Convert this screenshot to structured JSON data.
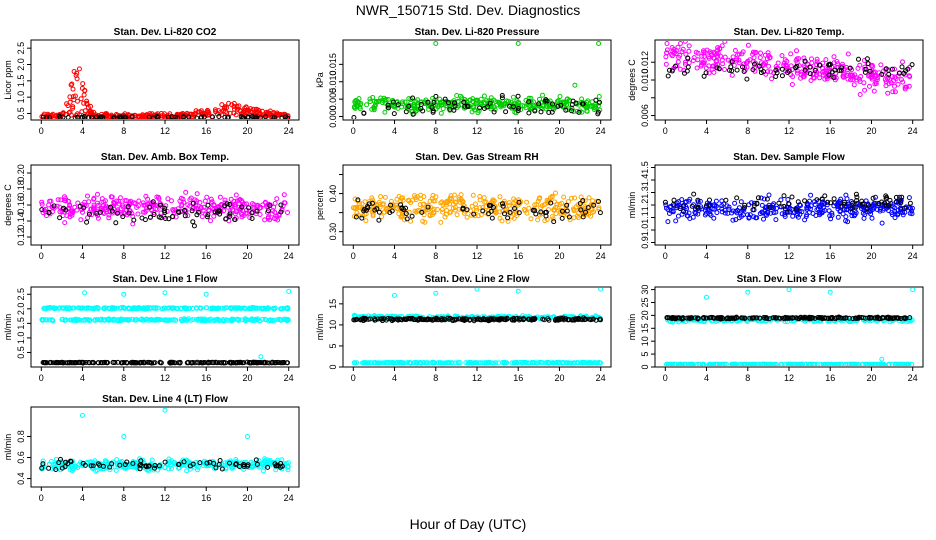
{
  "figure": {
    "title": "NWR_150715  Std. Dev. Diagnostics",
    "xlabel": "Hour of Day (UTC)"
  },
  "colors": {
    "red": "#ff0000",
    "green": "#00cc00",
    "magenta": "#ff00ff",
    "orange": "#ffa500",
    "blue": "#0000ff",
    "cyan": "#00ffff",
    "black": "#000000"
  },
  "chart_data": [
    {
      "type": "scatter",
      "title": "Stan. Dev. Li-820 CO2",
      "ylabel": "Licor ppm",
      "xlim": [
        -1,
        25
      ],
      "ylim": [
        0.3,
        2.75
      ],
      "xticks": [
        0,
        4,
        8,
        12,
        16,
        20,
        24
      ],
      "yticks": [
        0.5,
        1.0,
        1.5,
        2.0,
        2.5
      ],
      "ytick_labels": [
        "0.5",
        "1.0",
        "1.5",
        "2.0",
        "2.5"
      ],
      "series": [
        {
          "color": "#ff0000",
          "pattern": "spike",
          "base": 0.42,
          "spread": 0.1,
          "peaks": [
            {
              "x": 3.5,
              "height": 1.7,
              "width": 0.9
            },
            {
              "x": 18.5,
              "height": 0.35,
              "width": 3.5
            }
          ]
        },
        {
          "color": "#000000",
          "pattern": "sparse",
          "base": 0.38,
          "spread": 0.04
        }
      ]
    },
    {
      "type": "scatter",
      "title": "Stan. Dev. Li-820 Pressure",
      "ylabel": "kPa",
      "xlim": [
        -1,
        25
      ],
      "ylim": [
        -0.001,
        0.022
      ],
      "xticks": [
        0,
        4,
        8,
        12,
        16,
        20,
        24
      ],
      "yticks": [
        0.0,
        0.005,
        0.01,
        0.015
      ],
      "ytick_labels": [
        "0.000",
        "0.005",
        "0.010",
        "0.015"
      ],
      "series": [
        {
          "color": "#00cc00",
          "pattern": "band",
          "base": 0.0035,
          "spread": 0.003,
          "outliers": [
            [
              8,
              0.021
            ],
            [
              16,
              0.021
            ],
            [
              23.8,
              0.021
            ],
            [
              21.5,
              0.009
            ]
          ]
        },
        {
          "color": "#000000",
          "pattern": "sparse",
          "base": 0.003,
          "spread": 0.004
        }
      ]
    },
    {
      "type": "scatter",
      "title": "Stan. Dev. Li-820 Temp.",
      "ylabel": "degrees C",
      "xlim": [
        -1,
        25
      ],
      "ylim": [
        0.0055,
        0.0145
      ],
      "xticks": [
        0,
        4,
        8,
        12,
        16,
        20,
        24
      ],
      "yticks": [
        0.006,
        0.008,
        0.01,
        0.012
      ],
      "ytick_labels": [
        "0.006",
        "",
        "0.010",
        "0.012"
      ],
      "series": [
        {
          "color": "#ff00ff",
          "pattern": "trend",
          "base": 0.0115,
          "spread": 0.0025,
          "slope": -0.00012
        },
        {
          "color": "#000000",
          "pattern": "sparse",
          "base": 0.0112,
          "spread": 0.0015
        }
      ]
    },
    {
      "type": "scatter",
      "title": "Stan. Dev. Amb. Box Temp.",
      "ylabel": "degrees C",
      "xlim": [
        -1,
        25
      ],
      "ylim": [
        0.11,
        0.21
      ],
      "xticks": [
        0,
        4,
        8,
        12,
        16,
        20,
        24
      ],
      "yticks": [
        0.12,
        0.14,
        0.16,
        0.18,
        0.2
      ],
      "ytick_labels": [
        "0.12",
        "0.14",
        "0.16",
        "0.18",
        "0.20"
      ],
      "series": [
        {
          "color": "#ff00ff",
          "pattern": "band",
          "base": 0.156,
          "spread": 0.022
        },
        {
          "color": "#000000",
          "pattern": "sparse",
          "base": 0.15,
          "spread": 0.02
        }
      ]
    },
    {
      "type": "scatter",
      "title": "Stan. Dev. Gas Stream RH",
      "ylabel": "percent",
      "xlim": [
        -1,
        25
      ],
      "ylim": [
        0.265,
        0.475
      ],
      "xticks": [
        0,
        4,
        8,
        12,
        16,
        20,
        24
      ],
      "yticks": [
        0.3,
        0.35,
        0.4,
        0.45
      ],
      "ytick_labels": [
        "0.30",
        "",
        "0.40",
        ""
      ],
      "series": [
        {
          "color": "#ffa500",
          "pattern": "band",
          "base": 0.365,
          "spread": 0.05
        },
        {
          "color": "#000000",
          "pattern": "sparse",
          "base": 0.355,
          "spread": 0.04
        }
      ]
    },
    {
      "type": "scatter",
      "title": "Stan. Dev. Sample Flow",
      "ylabel": "ml/min",
      "xlim": [
        -1,
        25
      ],
      "ylim": [
        0.88,
        1.52
      ],
      "xticks": [
        0,
        4,
        8,
        12,
        16,
        20,
        24
      ],
      "yticks": [
        0.9,
        1.0,
        1.1,
        1.2,
        1.3,
        1.4,
        1.5
      ],
      "ytick_labels": [
        "0.9",
        "1.0",
        "1.1",
        "1.2",
        "1.3",
        "1.4",
        "1.5"
      ],
      "series": [
        {
          "color": "#0000ff",
          "pattern": "band",
          "base": 1.17,
          "spread": 0.13
        },
        {
          "color": "#000000",
          "pattern": "sparse",
          "base": 1.22,
          "spread": 0.1
        }
      ]
    },
    {
      "type": "scatter",
      "title": "Stan. Dev. Line 1 Flow",
      "ylabel": "ml/min",
      "xlim": [
        -1,
        25
      ],
      "ylim": [
        0,
        2.75
      ],
      "xticks": [
        0,
        4,
        8,
        12,
        16,
        20,
        24
      ],
      "yticks": [
        0.5,
        1.0,
        1.5,
        2.0,
        2.5
      ],
      "ytick_labels": [
        "0.5",
        "1.0",
        "1.5",
        "2.0",
        "2.5"
      ],
      "series": [
        {
          "color": "#00ffff",
          "pattern": "line",
          "base": 1.62,
          "spread": 0.05,
          "outliers": [
            [
              4.2,
              2.55
            ],
            [
              8,
              2.5
            ],
            [
              12,
              2.55
            ],
            [
              16,
              2.5
            ],
            [
              24,
              2.6
            ],
            [
              21.3,
              0.35
            ]
          ]
        },
        {
          "color": "#00ffff",
          "pattern": "line",
          "base": 2.02,
          "spread": 0.04
        },
        {
          "color": "#000000",
          "pattern": "line",
          "base": 0.15,
          "spread": 0.02
        }
      ]
    },
    {
      "type": "scatter",
      "title": "Stan. Dev. Line 2 Flow",
      "ylabel": "ml/min",
      "xlim": [
        -1,
        25
      ],
      "ylim": [
        0,
        19
      ],
      "xticks": [
        0,
        4,
        8,
        12,
        16,
        20,
        24
      ],
      "yticks": [
        0,
        5,
        10,
        15
      ],
      "ytick_labels": [
        "0",
        "5",
        "10",
        "15"
      ],
      "series": [
        {
          "color": "#00ffff",
          "pattern": "line",
          "base": 11.8,
          "spread": 0.6,
          "outliers": [
            [
              4,
              17
            ],
            [
              8,
              17.5
            ],
            [
              12,
              18.5
            ],
            [
              16,
              18
            ],
            [
              24,
              18.5
            ]
          ]
        },
        {
          "color": "#00ffff",
          "pattern": "line",
          "base": 1.0,
          "spread": 0.15
        },
        {
          "color": "#000000",
          "pattern": "line",
          "base": 11.3,
          "spread": 0.4
        }
      ]
    },
    {
      "type": "scatter",
      "title": "Stan. Dev. Line 3 Flow",
      "ylabel": "ml/min",
      "xlim": [
        -1,
        25
      ],
      "ylim": [
        0,
        31
      ],
      "xticks": [
        0,
        4,
        8,
        12,
        16,
        20,
        24
      ],
      "yticks": [
        0,
        5,
        10,
        15,
        20,
        25,
        30
      ],
      "ytick_labels": [
        "0",
        "5",
        "10",
        "15",
        "20",
        "25",
        "30"
      ],
      "series": [
        {
          "color": "#00ffff",
          "pattern": "line",
          "base": 18.2,
          "spread": 1.0,
          "outliers": [
            [
              4,
              27
            ],
            [
              8,
              29
            ],
            [
              12,
              30
            ],
            [
              16,
              29
            ],
            [
              24,
              30
            ],
            [
              21,
              3
            ]
          ]
        },
        {
          "color": "#00ffff",
          "pattern": "line",
          "base": 1.0,
          "spread": 0.2
        },
        {
          "color": "#000000",
          "pattern": "line",
          "base": 19.0,
          "spread": 0.5
        }
      ]
    },
    {
      "type": "scatter",
      "title": "Stan. Dev. Line 4 (LT) Flow",
      "ylabel": "ml/min",
      "xlim": [
        -1,
        25
      ],
      "ylim": [
        0.32,
        1.08
      ],
      "xticks": [
        0,
        4,
        8,
        12,
        16,
        20,
        24
      ],
      "yticks": [
        0.4,
        0.6,
        0.8
      ],
      "ytick_labels": [
        "0.4",
        "0.6",
        "0.8"
      ],
      "series": [
        {
          "color": "#00ffff",
          "pattern": "band",
          "base": 0.53,
          "spread": 0.07,
          "outliers": [
            [
              4,
              1.0
            ],
            [
              12,
              1.05
            ],
            [
              8,
              0.8
            ],
            [
              20,
              0.8
            ]
          ]
        },
        {
          "color": "#000000",
          "pattern": "sparse",
          "base": 0.53,
          "spread": 0.07
        }
      ]
    }
  ]
}
